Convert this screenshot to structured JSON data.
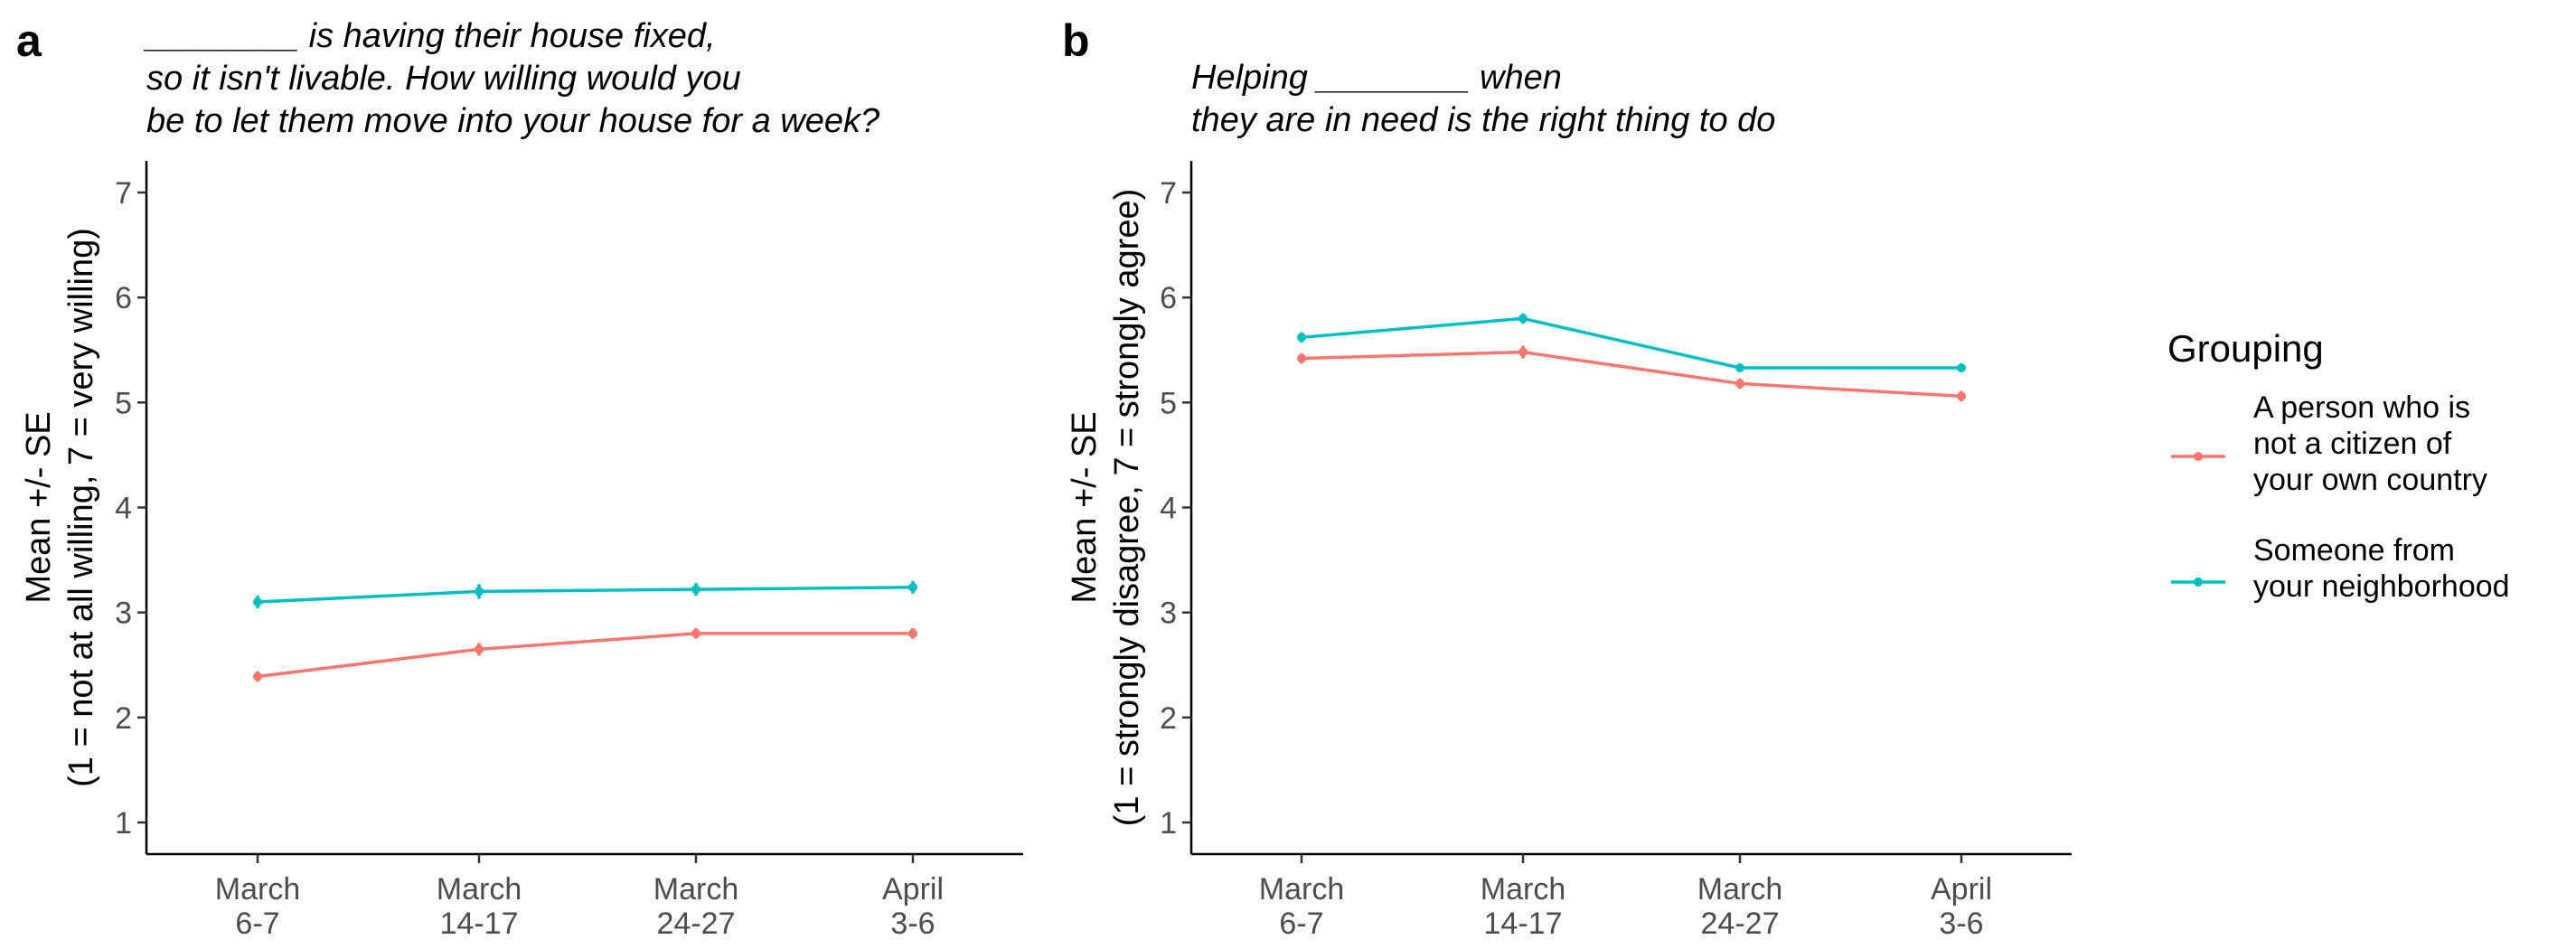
{
  "chart_data": [
    {
      "type": "line",
      "panel_label": "a",
      "title_lines": [
        "________ is having their house fixed,",
        "so it isn't livable. How willing would you",
        "be to let them move into your house for a week?"
      ],
      "categories": [
        "March\n6-7",
        "March\n14-17",
        "March\n24-27",
        "April\n3-6"
      ],
      "ylabel_lines": [
        "Mean +/- SE",
        "(1 = not at all willing, 7 = very willing)"
      ],
      "ylim": [
        1,
        7
      ],
      "yticks": [
        1,
        2,
        3,
        4,
        5,
        6,
        7
      ],
      "series": [
        {
          "name": "A person who is not a citizen of your own country",
          "color": "#F8766D",
          "values": [
            2.39,
            2.65,
            2.8,
            2.8
          ],
          "se": [
            0.05,
            0.06,
            0.05,
            0.05
          ]
        },
        {
          "name": "Someone from your neighborhood",
          "color": "#00BFC4",
          "values": [
            3.1,
            3.2,
            3.22,
            3.24
          ],
          "se": [
            0.06,
            0.07,
            0.06,
            0.06
          ]
        }
      ]
    },
    {
      "type": "line",
      "panel_label": "b",
      "title_lines": [
        "Helping ________ when",
        "they are in need is the right thing to do"
      ],
      "categories": [
        "March\n6-7",
        "March\n14-17",
        "March\n24-27",
        "April\n3-6"
      ],
      "ylabel_lines": [
        "Mean +/- SE",
        "(1 = strongly disagree, 7 = strongly agree)"
      ],
      "ylim": [
        1,
        7
      ],
      "yticks": [
        1,
        2,
        3,
        4,
        5,
        6,
        7
      ],
      "series": [
        {
          "name": "A person who is not a citizen of your own country",
          "color": "#F8766D",
          "values": [
            5.42,
            5.48,
            5.18,
            5.06
          ],
          "se": [
            0.05,
            0.06,
            0.05,
            0.05
          ]
        },
        {
          "name": "Someone from your neighborhood",
          "color": "#00BFC4",
          "values": [
            5.62,
            5.8,
            5.33,
            5.33
          ],
          "se": [
            0.05,
            0.05,
            0.04,
            0.04
          ]
        }
      ]
    }
  ],
  "legend": {
    "title": "Grouping",
    "entries": [
      {
        "label_lines": [
          "A person who is",
          "not a citizen of",
          "your own country"
        ],
        "color": "#F8766D"
      },
      {
        "label_lines": [
          "Someone from",
          "your neighborhood"
        ],
        "color": "#00BFC4"
      }
    ]
  }
}
